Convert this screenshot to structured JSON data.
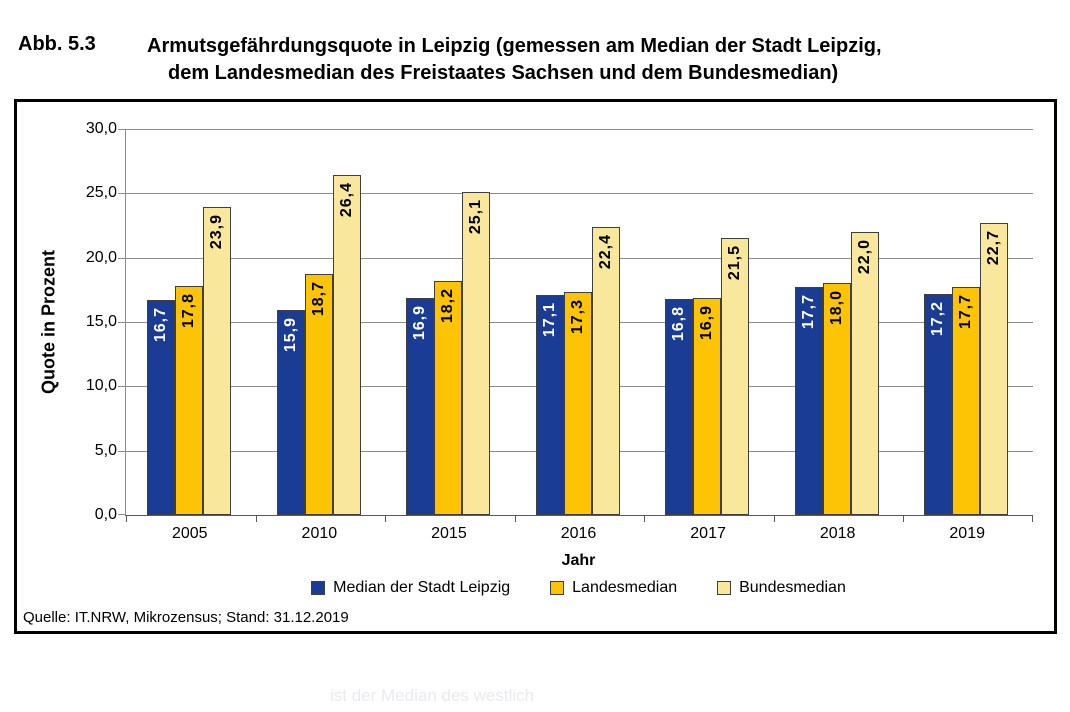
{
  "figure": {
    "label": "Abb. 5.3",
    "title_line1": "Armutsgefährdungsquote in Leipzig (gemessen am Median der Stadt Leipzig,",
    "title_line2": "dem Landesmedian des Freistaates Sachsen und dem Bundesmedian)"
  },
  "chart_data": {
    "type": "bar",
    "categories": [
      "2005",
      "2010",
      "2015",
      "2016",
      "2017",
      "2018",
      "2019"
    ],
    "series": [
      {
        "name": "Median der Stadt Leipzig",
        "color": "#1b3c94",
        "label_color": "#ffffff",
        "values": [
          16.7,
          15.9,
          16.9,
          17.1,
          16.8,
          17.7,
          17.2
        ],
        "labels": [
          "16,7",
          "15,9",
          "16,9",
          "17,1",
          "16,8",
          "17,7",
          "17,2"
        ]
      },
      {
        "name": "Landesmedian",
        "color": "#fcc404",
        "label_color": "#000000",
        "values": [
          17.8,
          18.7,
          18.2,
          17.3,
          16.9,
          18.0,
          17.7
        ],
        "labels": [
          "17,8",
          "18,7",
          "18,2",
          "17,3",
          "16,9",
          "18,0",
          "17,7"
        ]
      },
      {
        "name": "Bundesmedian",
        "color": "#f9e79c",
        "label_color": "#000000",
        "values": [
          23.9,
          26.4,
          25.1,
          22.4,
          21.5,
          22.0,
          22.7
        ],
        "labels": [
          "23,9",
          "26,4",
          "25,1",
          "22,4",
          "21,5",
          "22,0",
          "22,7"
        ]
      }
    ],
    "xlabel": "Jahr",
    "ylabel": "Quote in Prozent",
    "ylim": [
      0,
      30
    ],
    "ytick_step": 5,
    "ytick_labels": [
      "0,0",
      "5,0",
      "10,0",
      "15,0",
      "20,0",
      "25,0",
      "30,0"
    ],
    "grid": true,
    "legend_position": "bottom"
  },
  "source_note": "Quelle: IT.NRW, Mikrozensus; Stand: 31.12.2019",
  "ghost_text": "ist der Median des westlich",
  "colors": {
    "bar_border": "#3f3f3f",
    "gridline": "#8c8c8c",
    "axis": "#595959",
    "chart_box_border": "#000000"
  }
}
